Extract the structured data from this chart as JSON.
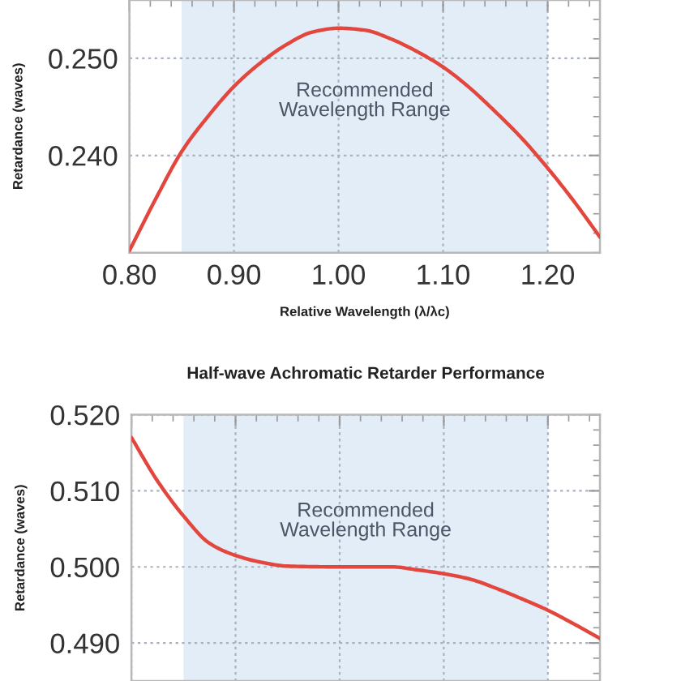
{
  "chart_data": [
    {
      "type": "line",
      "xlabel": "Relative Wavelength (λ/λc)",
      "ylabel": "Retardance (waves)",
      "x": [
        0.8,
        0.825,
        0.85,
        0.875,
        0.9,
        0.925,
        0.95,
        0.975,
        1.0,
        1.025,
        1.05,
        1.075,
        1.1,
        1.125,
        1.15,
        1.175,
        1.2,
        1.225,
        1.25
      ],
      "series": [
        {
          "color": "#e3463d",
          "values": [
            0.2302,
            0.2355,
            0.2404,
            0.244,
            0.2471,
            0.2495,
            0.2514,
            0.2527,
            0.2531,
            0.2529,
            0.252,
            0.2507,
            0.2491,
            0.247,
            0.2445,
            0.2418,
            0.2387,
            0.2353,
            0.2316
          ]
        }
      ],
      "xlim": [
        0.8,
        1.25
      ],
      "xticks": [
        {
          "value": 0.8,
          "label": "0.80"
        },
        {
          "value": 0.9,
          "label": "0.90"
        },
        {
          "value": 1.0,
          "label": "1.00"
        },
        {
          "value": 1.1,
          "label": "1.10"
        },
        {
          "value": 1.2,
          "label": "1.20"
        }
      ],
      "ylim": [
        0.23,
        0.256
      ],
      "yticks": [
        {
          "value": 0.24,
          "label": "0.240"
        },
        {
          "value": 0.25,
          "label": "0.250"
        }
      ],
      "grid": true,
      "bands": [
        {
          "axis": "x",
          "from": 0.85,
          "to": 1.2,
          "label": "Recommended\nWavelength Range",
          "color": "#e3edf8"
        }
      ]
    },
    {
      "type": "line",
      "title": "Half-wave Achromatic Retarder Performance",
      "ylabel": "Retardance (waves)",
      "x": [
        0.8,
        0.825,
        0.85,
        0.875,
        0.9,
        0.925,
        0.95,
        1.0,
        1.05,
        1.075,
        1.1,
        1.125,
        1.15,
        1.175,
        1.2,
        1.225,
        1.25
      ],
      "series": [
        {
          "color": "#e3463d",
          "values": [
            0.517,
            0.5113,
            0.5067,
            0.5031,
            0.5015,
            0.5006,
            0.5001,
            0.5,
            0.5,
            0.4996,
            0.4991,
            0.4984,
            0.4972,
            0.4958,
            0.4943,
            0.4925,
            0.4906
          ]
        }
      ],
      "xlim": [
        0.8,
        1.25
      ],
      "xticks": [
        {
          "value": 0.8,
          "label": null
        },
        {
          "value": 0.9,
          "label": null
        },
        {
          "value": 1.0,
          "label": null
        },
        {
          "value": 1.1,
          "label": null
        },
        {
          "value": 1.2,
          "label": null
        }
      ],
      "ylim": [
        0.485,
        0.52
      ],
      "yticks": [
        {
          "value": 0.49,
          "label": "0.490"
        },
        {
          "value": 0.5,
          "label": "0.500"
        },
        {
          "value": 0.51,
          "label": "0.510"
        },
        {
          "value": 0.52,
          "label": "0.520"
        }
      ],
      "tick_labels": "y",
      "grid": true,
      "bands": [
        {
          "axis": "x",
          "from": 0.85,
          "to": 1.2,
          "label": "Recommended\nWavelength Range",
          "color": "#e3edf8"
        }
      ]
    }
  ]
}
